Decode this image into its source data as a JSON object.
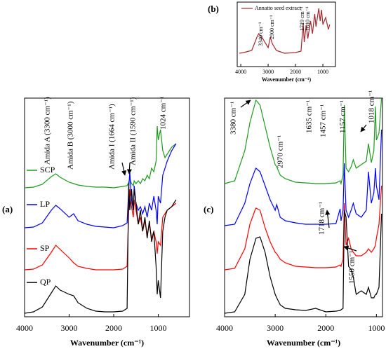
{
  "chart_data": [
    {
      "type": "line",
      "panel_label": "(a)",
      "x_label": "Wavenumber (cm⁻¹)",
      "xlim": [
        4000,
        300
      ],
      "xticks": [
        4000,
        3000,
        2000,
        1000
      ],
      "ylim": [
        0,
        312
      ],
      "x": [
        4000,
        3800,
        3600,
        3400,
        3300,
        3200,
        3000,
        2900,
        2800,
        2600,
        2400,
        2200,
        2000,
        1800,
        1700,
        1664,
        1640,
        1600,
        1560,
        1540,
        1500,
        1450,
        1400,
        1350,
        1300,
        1250,
        1200,
        1150,
        1100,
        1050,
        1024,
        1000,
        950,
        900,
        850,
        800,
        700,
        600
      ],
      "series": [
        {
          "name": "SCP",
          "color": "#1f9a1f",
          "values": [
            184,
            185,
            189,
            200,
            204,
            199,
            192,
            190,
            188,
            186,
            185,
            185,
            184,
            186,
            187,
            192,
            197,
            190,
            187,
            194,
            190,
            194,
            190,
            197,
            194,
            202,
            197,
            212,
            207,
            222,
            272,
            252,
            267,
            237,
            227,
            232,
            242,
            247
          ]
        },
        {
          "name": "LP",
          "color": "#0000ff",
          "values": [
            127,
            128,
            134,
            152,
            159,
            154,
            142,
            147,
            137,
            132,
            129,
            128,
            127,
            130,
            134,
            182,
            207,
            167,
            152,
            187,
            162,
            152,
            157,
            147,
            157,
            142,
            162,
            152,
            172,
            152,
            132,
            172,
            162,
            202,
            212,
            222,
            237,
            247
          ]
        },
        {
          "name": "SP",
          "color": "#ff0000",
          "values": [
            67,
            68,
            74,
            92,
            102,
            96,
            84,
            77,
            72,
            69,
            67,
            67,
            67,
            68,
            72,
            152,
            182,
            157,
            142,
            167,
            152,
            132,
            142,
            122,
            137,
            117,
            132,
            112,
            122,
            107,
            90,
            107,
            102,
            142,
            147,
            152,
            157,
            162
          ]
        },
        {
          "name": "QP",
          "color": "#000000",
          "values": [
            5,
            7,
            14,
            34,
            44,
            38,
            32,
            30,
            20,
            12,
            8,
            7,
            7,
            8,
            12,
            190,
            152,
            182,
            152,
            182,
            162,
            132,
            152,
            122,
            142,
            112,
            137,
            107,
            122,
            72,
            32,
            52,
            27,
            122,
            142,
            152,
            157,
            167
          ]
        }
      ],
      "annotations": [
        "Amida A (3300 cm⁻¹)",
        "Amida B (3000 cm⁻¹)",
        "Amida I (1664 cm⁻¹)",
        "Amida II (1590 cm⁻¹)",
        "1024 cm⁻¹"
      ]
    },
    {
      "type": "line",
      "panel_label": "(b)",
      "x_label": "Wavenumber (cm⁻¹)",
      "xlim": [
        4130,
        540
      ],
      "xticks": [
        4000,
        3000,
        2000,
        1000
      ],
      "ylim": [
        0,
        92
      ],
      "x": [
        4050,
        3900,
        3600,
        3400,
        3340,
        3200,
        3000,
        2920,
        2850,
        2700,
        2400,
        2000,
        1800,
        1719,
        1680,
        1610,
        1550,
        1450,
        1380,
        1300,
        1250,
        1150,
        1100,
        1050,
        1000,
        900,
        800,
        750
      ],
      "series": [
        {
          "name": "Annatto seed extract",
          "color": "#a3282f",
          "values": [
            19,
            20,
            23,
            43,
            47,
            40,
            27,
            42,
            33,
            23,
            19,
            20,
            22,
            62,
            35,
            59,
            40,
            65,
            47,
            75,
            57,
            83,
            65,
            81,
            60,
            70,
            53,
            60
          ]
        }
      ],
      "annotations": [
        "3340 cm⁻¹",
        "2900 cm⁻¹",
        "1719 cm⁻¹",
        "1610 cm⁻¹"
      ]
    },
    {
      "type": "line",
      "panel_label": "(c)",
      "x_label": "Wavenumber (cm⁻¹)",
      "xlim": [
        4000,
        880
      ],
      "xticks": [
        4000,
        3000,
        2000,
        1000
      ],
      "ylim": [
        0,
        312
      ],
      "x": [
        4000,
        3800,
        3600,
        3500,
        3400,
        3380,
        3300,
        3200,
        3100,
        3000,
        2970,
        2900,
        2800,
        2600,
        2400,
        2200,
        2000,
        1800,
        1718,
        1700,
        1660,
        1635,
        1600,
        1550,
        1500,
        1457,
        1400,
        1300,
        1200,
        1157,
        1100,
        1050,
        1018,
        1000,
        950,
        900
      ],
      "series": [
        {
          "color": "#1f9a1f",
          "values": [
            190,
            194,
            237,
            277,
            304,
            309,
            302,
            272,
            242,
            217,
            214,
            202,
            197,
            192,
            191,
            190,
            190,
            191,
            194,
            190,
            202,
            302,
            212,
            207,
            214,
            224,
            212,
            217,
            222,
            247,
            220,
            237,
            300,
            252,
            262,
            312
          ]
        },
        {
          "color": "#0000ff",
          "values": [
            130,
            132,
            162,
            190,
            209,
            212,
            207,
            187,
            167,
            152,
            160,
            142,
            137,
            134,
            132,
            132,
            132,
            133,
            154,
            137,
            152,
            219,
            152,
            142,
            152,
            162,
            147,
            142,
            152,
            207,
            162,
            177,
            212,
            187,
            167,
            267
          ]
        },
        {
          "color": "#ff0000",
          "values": [
            67,
            69,
            97,
            132,
            152,
            155,
            152,
            127,
            107,
            92,
            90,
            82,
            77,
            72,
            71,
            70,
            70,
            71,
            74,
            72,
            82,
            162,
            102,
            112,
            97,
            92,
            87,
            87,
            92,
            97,
            92,
            97,
            102,
            112,
            132,
            187
          ]
        },
        {
          "color": "#000000",
          "values": [
            5,
            7,
            32,
            82,
            107,
            112,
            114,
            92,
            57,
            32,
            27,
            17,
            12,
            10,
            9,
            12,
            7,
            8,
            9,
            10,
            12,
            152,
            142,
            72,
            67,
            57,
            32,
            37,
            32,
            42,
            27,
            27,
            32,
            32,
            42,
            147
          ]
        }
      ],
      "annotations": [
        "3380 cm⁻¹",
        "2970 cm⁻¹",
        "1635 cm⁻¹",
        "1457 cm⁻¹",
        "1157 cm⁻¹",
        "1018 cm⁻¹",
        "1718 cm⁻¹",
        "1550 cm⁻¹"
      ]
    }
  ]
}
